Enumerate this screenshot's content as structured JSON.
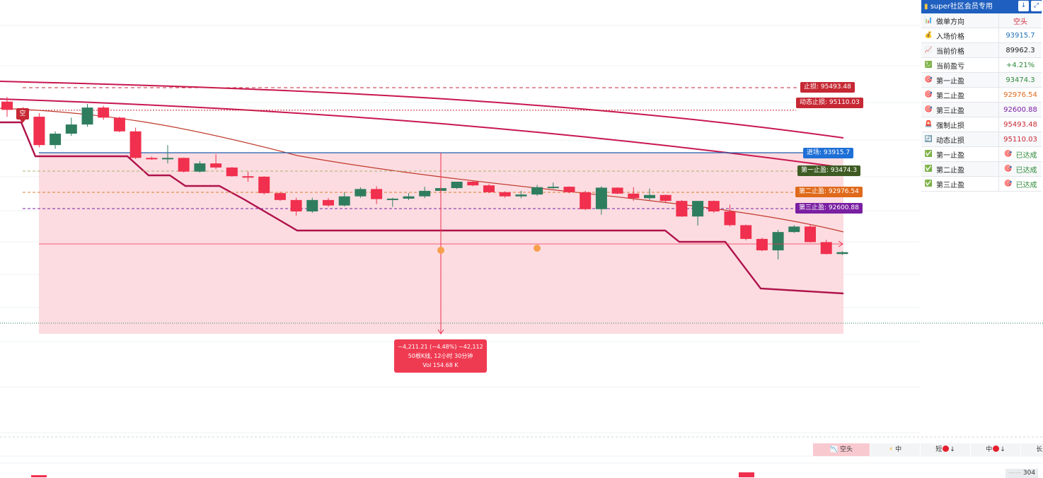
{
  "chart_data": {
    "type": "candlestick",
    "ylim": [
      89480,
      95880
    ],
    "candles": [
      {
        "o": 95050,
        "h": 95150,
        "l": 94720,
        "c": 94870
      },
      {
        "o": 94870,
        "h": 94930,
        "l": 94620,
        "c": 94720
      },
      {
        "o": 94720,
        "h": 94800,
        "l": 94050,
        "c": 94100
      },
      {
        "o": 94100,
        "h": 94400,
        "l": 94020,
        "c": 94350
      },
      {
        "o": 94350,
        "h": 94700,
        "l": 94300,
        "c": 94550
      },
      {
        "o": 94550,
        "h": 95000,
        "l": 94500,
        "c": 94920
      },
      {
        "o": 94920,
        "h": 94960,
        "l": 94650,
        "c": 94700
      },
      {
        "o": 94700,
        "h": 94720,
        "l": 94380,
        "c": 94400
      },
      {
        "o": 94400,
        "h": 94480,
        "l": 93800,
        "c": 93820
      },
      {
        "o": 93820,
        "h": 93850,
        "l": 93780,
        "c": 93790
      },
      {
        "o": 93790,
        "h": 94100,
        "l": 93700,
        "c": 93820
      },
      {
        "o": 93820,
        "h": 93830,
        "l": 93500,
        "c": 93520
      },
      {
        "o": 93520,
        "h": 93750,
        "l": 93500,
        "c": 93700
      },
      {
        "o": 93700,
        "h": 93900,
        "l": 93570,
        "c": 93610
      },
      {
        "o": 93610,
        "h": 93620,
        "l": 93410,
        "c": 93420
      },
      {
        "o": 93420,
        "h": 93520,
        "l": 93300,
        "c": 93410
      },
      {
        "o": 93410,
        "h": 93420,
        "l": 93020,
        "c": 93050
      },
      {
        "o": 93050,
        "h": 93080,
        "l": 92880,
        "c": 92900
      },
      {
        "o": 92900,
        "h": 92950,
        "l": 92560,
        "c": 92650
      },
      {
        "o": 92650,
        "h": 92950,
        "l": 92620,
        "c": 92900
      },
      {
        "o": 92900,
        "h": 92940,
        "l": 92750,
        "c": 92780
      },
      {
        "o": 92780,
        "h": 93070,
        "l": 92760,
        "c": 92980
      },
      {
        "o": 92980,
        "h": 93180,
        "l": 92950,
        "c": 93140
      },
      {
        "o": 93140,
        "h": 93200,
        "l": 92810,
        "c": 92920
      },
      {
        "o": 92920,
        "h": 92950,
        "l": 92750,
        "c": 92930
      },
      {
        "o": 92930,
        "h": 93050,
        "l": 92900,
        "c": 92980
      },
      {
        "o": 92980,
        "h": 93190,
        "l": 92940,
        "c": 93100
      },
      {
        "o": 93100,
        "h": 93220,
        "l": 93080,
        "c": 93160
      },
      {
        "o": 93160,
        "h": 93250,
        "l": 93140,
        "c": 93300
      },
      {
        "o": 93300,
        "h": 93310,
        "l": 93200,
        "c": 93220
      },
      {
        "o": 93220,
        "h": 93250,
        "l": 93050,
        "c": 93070
      },
      {
        "o": 93070,
        "h": 93090,
        "l": 92950,
        "c": 92980
      },
      {
        "o": 92980,
        "h": 93100,
        "l": 92940,
        "c": 93020
      },
      {
        "o": 93020,
        "h": 93230,
        "l": 92990,
        "c": 93180
      },
      {
        "o": 93180,
        "h": 93280,
        "l": 93150,
        "c": 93190
      },
      {
        "o": 93190,
        "h": 93200,
        "l": 93050,
        "c": 93070
      },
      {
        "o": 93070,
        "h": 93100,
        "l": 92680,
        "c": 92700
      },
      {
        "o": 92700,
        "h": 93200,
        "l": 92580,
        "c": 93170
      },
      {
        "o": 93170,
        "h": 93180,
        "l": 93030,
        "c": 93040
      },
      {
        "o": 93040,
        "h": 93180,
        "l": 92880,
        "c": 92940
      },
      {
        "o": 92940,
        "h": 93150,
        "l": 92900,
        "c": 93010
      },
      {
        "o": 93010,
        "h": 93020,
        "l": 92850,
        "c": 92880
      },
      {
        "o": 92880,
        "h": 92900,
        "l": 92530,
        "c": 92540
      },
      {
        "o": 92540,
        "h": 92880,
        "l": 92340,
        "c": 92880
      },
      {
        "o": 92880,
        "h": 92890,
        "l": 92620,
        "c": 92650
      },
      {
        "o": 92650,
        "h": 92800,
        "l": 92320,
        "c": 92350
      },
      {
        "o": 92350,
        "h": 92360,
        "l": 92020,
        "c": 92050
      },
      {
        "o": 92050,
        "h": 92080,
        "l": 91780,
        "c": 91800
      },
      {
        "o": 91800,
        "h": 92250,
        "l": 91600,
        "c": 92200
      },
      {
        "o": 92200,
        "h": 92350,
        "l": 92180,
        "c": 92320
      },
      {
        "o": 92320,
        "h": 92360,
        "l": 91970,
        "c": 91980
      },
      {
        "o": 91980,
        "h": 92030,
        "l": 91710,
        "c": 91720
      },
      {
        "o": 91720,
        "h": 91780,
        "l": 91700,
        "c": 91760
      }
    ],
    "lines": {
      "entry": 93915.7,
      "tp1": 93474.3,
      "tp2": 92976.54,
      "tp3": 92600.88,
      "stop_loss": 95493.48,
      "dynamic_stop": 95110.03
    },
    "line_labels": {
      "entry": "进场: 93915.7",
      "tp1": "第一止盈: 93474.3",
      "tp2": "第二止盈: 92976.54",
      "tp3": "第三止盈: 92600.88",
      "stop_loss": "止损: 95493.48",
      "dynamic_stop": "动态止损: 95110.03"
    },
    "short_marker": "空",
    "measure": {
      "line1": "−4,211.21 (−4.48%) −42,112",
      "line2": "50根K线, 12小时 30分钟",
      "line3": "Vol 154.68 K"
    },
    "volume_value": "304"
  },
  "panel": {
    "title": "super社区会员专用",
    "rows": [
      {
        "icon": "bar-chart-icon",
        "label": "做单方向",
        "value": "空头",
        "color": "#d3303f"
      },
      {
        "icon": "money-bag-icon",
        "label": "入场价格",
        "value": "93915.7",
        "color": "#1f6fb5"
      },
      {
        "icon": "trend-chart-icon",
        "label": "当前价格",
        "value": "89962.3",
        "color": "#222222"
      },
      {
        "icon": "yen-icon",
        "label": "当前盈亏",
        "value": "+4.21%",
        "color": "#2f8a3a"
      },
      {
        "icon": "target-icon",
        "label": "第一止盈",
        "value": "93474.3",
        "color": "#2f8a3a"
      },
      {
        "icon": "target-icon",
        "label": "第二止盈",
        "value": "92976.54",
        "color": "#e06a1b"
      },
      {
        "icon": "target-icon",
        "label": "第三止盈",
        "value": "92600.88",
        "color": "#7a1fa2"
      },
      {
        "icon": "siren-icon",
        "label": "强制止损",
        "value": "95493.48",
        "color": "#c62834"
      },
      {
        "icon": "refresh-icon",
        "label": "动态止损",
        "value": "95110.03",
        "color": "#c62834"
      },
      {
        "icon": "check-icon",
        "label": "第一止盈",
        "value": "已达成",
        "color": "#2f8a3a"
      },
      {
        "icon": "check-icon",
        "label": "第二止盈",
        "value": "已达成",
        "color": "#2f8a3a"
      },
      {
        "icon": "check-icon",
        "label": "第三止盈",
        "value": "已达成",
        "color": "#2f8a3a"
      }
    ]
  },
  "bottom_bar": {
    "direction": "空头",
    "strength": "中",
    "short": "短",
    "mid": "中",
    "long": "长"
  }
}
